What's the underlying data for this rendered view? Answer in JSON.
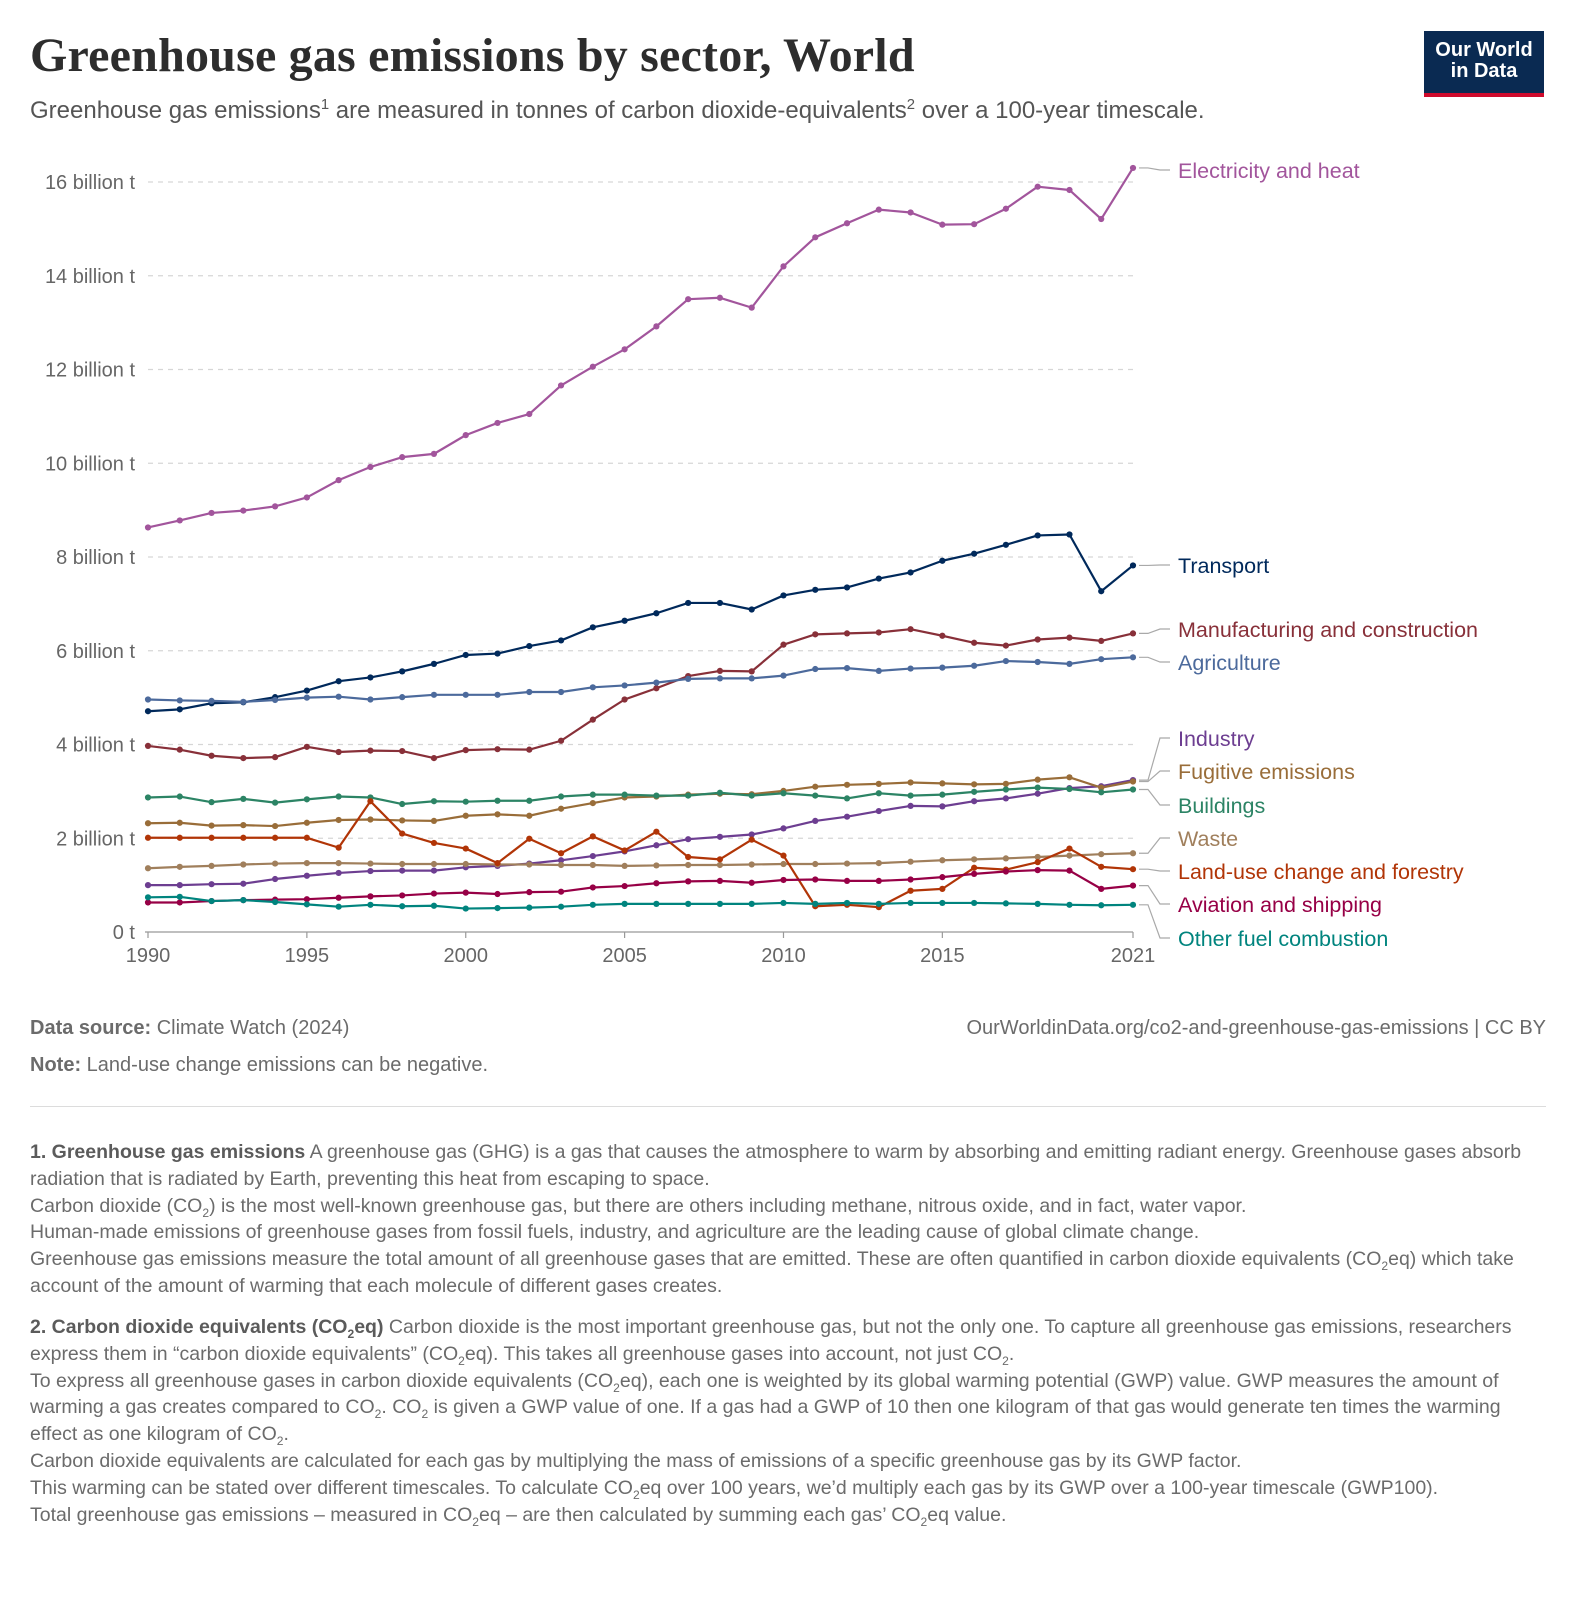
{
  "header": {
    "title": "Greenhouse gas emissions by sector, World",
    "subtitle_a": "Greenhouse gas emissions",
    "sup1": "1",
    "subtitle_b": " are measured in tonnes of carbon dioxide-equivalents",
    "sup2": "2",
    "subtitle_c": " over a 100-year timescale.",
    "logo_line1": "Our World",
    "logo_line2": "in Data"
  },
  "footer": {
    "source_label": "Data source:",
    "source_value": " Climate Watch (2024)",
    "url": "OurWorldinData.org/co2-and-greenhouse-gas-emissions | CC BY",
    "note_label": "Note:",
    "note_value": " Land-use change emissions can be negative."
  },
  "footnotes": {
    "fn1_title": "1. Greenhouse gas emissions",
    "fn1_p1": " A greenhouse gas (GHG) is a gas that causes the atmosphere to warm by absorbing and emitting radiant energy. Greenhouse gases absorb radiation that is radiated by Earth, preventing this heat from escaping to space.",
    "fn1_p2a": "Carbon dioxide (CO",
    "fn1_p2b": ") is the most well-known greenhouse gas, but there are others including methane, nitrous oxide, and in fact, water vapor.",
    "fn1_p3": "Human-made emissions of greenhouse gases from fossil fuels, industry, and agriculture are the leading cause of global climate change.",
    "fn1_p4a": "Greenhouse gas emissions measure the total amount of all greenhouse gases that are emitted. These are often quantified in carbon dioxide equivalents (CO",
    "fn1_p4b": "eq) which take account of the amount of warming that each molecule of different gases creates.",
    "sub2": "2",
    "fn2_title_a": "2. Carbon dioxide equivalents (CO",
    "fn2_title_b": "eq)",
    "fn2_p1a": " Carbon dioxide is the most important greenhouse gas, but not the only one. To capture all greenhouse gas emissions, researchers express them in “carbon dioxide equivalents” (CO",
    "fn2_p1b": "eq). This takes all greenhouse gases into account, not just CO",
    "fn2_p1c": ".",
    "fn2_p2a": "To express all greenhouse gases in carbon dioxide equivalents (CO",
    "fn2_p2b": "eq), each one is weighted by its global warming potential (GWP) value. GWP measures the amount of warming a gas creates compared to CO",
    "fn2_p2c": ". CO",
    "fn2_p2d": " is given a GWP value of one. If a gas had a GWP of 10 then one kilogram of that gas would generate ten times the warming effect as one kilogram of CO",
    "fn2_p2e": ".",
    "fn2_p3": "Carbon dioxide equivalents are calculated for each gas by multiplying the mass of emissions of a specific greenhouse gas by its GWP factor.",
    "fn2_p4a": "This warming can be stated over different timescales. To calculate CO",
    "fn2_p4b": "eq over 100 years, we’d multiply each gas by its GWP over a 100-year timescale (GWP100).",
    "fn2_p5a": "Total greenhouse gas emissions – measured in CO",
    "fn2_p5b": "eq – are then calculated by summing each gas’ CO",
    "fn2_p5c": "eq value."
  },
  "chart_data": {
    "type": "line",
    "title": "Greenhouse gas emissions by sector, World",
    "unit": "tonnes CO2eq",
    "ylim": [
      0,
      16000000000
    ],
    "yticks": [
      0,
      2000000000,
      4000000000,
      6000000000,
      8000000000,
      10000000000,
      12000000000,
      14000000000,
      16000000000
    ],
    "ytick_labels": [
      "0 t",
      "2 billion t",
      "4 billion t",
      "6 billion t",
      "8 billion t",
      "10 billion t",
      "12 billion t",
      "14 billion t",
      "16 billion t"
    ],
    "xlim": [
      1990,
      2021
    ],
    "xticks": [
      1990,
      1995,
      2000,
      2005,
      2010,
      2015,
      2021
    ],
    "xtick_labels": [
      "1990",
      "1995",
      "2000",
      "2005",
      "2010",
      "2015",
      "2021"
    ],
    "x": [
      1990,
      1991,
      1992,
      1993,
      1994,
      1995,
      1996,
      1997,
      1998,
      1999,
      2000,
      2001,
      2002,
      2003,
      2004,
      2005,
      2006,
      2007,
      2008,
      2009,
      2010,
      2011,
      2012,
      2013,
      2014,
      2015,
      2016,
      2017,
      2018,
      2019,
      2020,
      2021
    ],
    "series": [
      {
        "name": "Electricity and heat",
        "color": "#a2559c",
        "values": [
          8.63,
          8.78,
          8.94,
          8.99,
          9.08,
          9.27,
          9.64,
          9.92,
          10.13,
          10.2,
          10.6,
          10.86,
          11.05,
          11.66,
          12.06,
          12.43,
          12.92,
          13.5,
          13.53,
          13.32,
          14.2,
          14.82,
          15.12,
          15.41,
          15.35,
          15.09,
          15.1,
          15.43,
          15.9,
          15.83,
          15.21,
          16.3
        ]
      },
      {
        "name": "Transport",
        "color": "#00295b",
        "values": [
          4.71,
          4.75,
          4.88,
          4.9,
          5.01,
          5.15,
          5.35,
          5.43,
          5.56,
          5.72,
          5.91,
          5.94,
          6.1,
          6.22,
          6.5,
          6.64,
          6.8,
          7.02,
          7.02,
          6.88,
          7.18,
          7.3,
          7.35,
          7.54,
          7.67,
          7.92,
          8.07,
          8.26,
          8.46,
          8.48,
          7.27,
          7.82
        ]
      },
      {
        "name": "Manufacturing and construction",
        "color": "#883039",
        "values": [
          3.97,
          3.89,
          3.76,
          3.71,
          3.73,
          3.95,
          3.84,
          3.87,
          3.86,
          3.71,
          3.88,
          3.9,
          3.89,
          4.08,
          4.53,
          4.96,
          5.2,
          5.46,
          5.57,
          5.56,
          6.13,
          6.35,
          6.37,
          6.39,
          6.46,
          6.32,
          6.17,
          6.11,
          6.24,
          6.28,
          6.21,
          6.37
        ]
      },
      {
        "name": "Agriculture",
        "color": "#4c6a9c",
        "values": [
          4.96,
          4.94,
          4.93,
          4.91,
          4.95,
          5.0,
          5.02,
          4.96,
          5.01,
          5.06,
          5.06,
          5.06,
          5.12,
          5.12,
          5.22,
          5.26,
          5.32,
          5.4,
          5.41,
          5.41,
          5.47,
          5.61,
          5.63,
          5.57,
          5.62,
          5.64,
          5.68,
          5.78,
          5.76,
          5.72,
          5.82,
          5.86
        ]
      },
      {
        "name": "Industry",
        "color": "#6d3e91",
        "values": [
          1.0,
          1.0,
          1.02,
          1.03,
          1.13,
          1.2,
          1.26,
          1.3,
          1.31,
          1.31,
          1.38,
          1.41,
          1.46,
          1.53,
          1.62,
          1.72,
          1.85,
          1.98,
          2.03,
          2.08,
          2.21,
          2.37,
          2.46,
          2.58,
          2.69,
          2.68,
          2.79,
          2.85,
          2.95,
          3.07,
          3.11,
          3.24
        ]
      },
      {
        "name": "Fugitive emissions",
        "color": "#996d39",
        "values": [
          2.32,
          2.33,
          2.27,
          2.28,
          2.26,
          2.33,
          2.39,
          2.4,
          2.38,
          2.37,
          2.48,
          2.51,
          2.48,
          2.63,
          2.75,
          2.87,
          2.89,
          2.93,
          2.95,
          2.94,
          3.01,
          3.1,
          3.14,
          3.16,
          3.19,
          3.17,
          3.15,
          3.16,
          3.25,
          3.3,
          3.08,
          3.21
        ]
      },
      {
        "name": "Buildings",
        "color": "#2c8465",
        "values": [
          2.87,
          2.89,
          2.77,
          2.84,
          2.76,
          2.83,
          2.89,
          2.87,
          2.73,
          2.79,
          2.78,
          2.8,
          2.8,
          2.89,
          2.93,
          2.93,
          2.91,
          2.91,
          2.97,
          2.91,
          2.96,
          2.91,
          2.85,
          2.96,
          2.91,
          2.93,
          2.99,
          3.04,
          3.08,
          3.05,
          2.98,
          3.04
        ]
      },
      {
        "name": "Waste",
        "color": "#a07f5c",
        "values": [
          1.36,
          1.39,
          1.41,
          1.44,
          1.46,
          1.47,
          1.47,
          1.46,
          1.45,
          1.45,
          1.45,
          1.44,
          1.44,
          1.43,
          1.43,
          1.41,
          1.42,
          1.43,
          1.43,
          1.44,
          1.45,
          1.45,
          1.46,
          1.47,
          1.5,
          1.53,
          1.55,
          1.57,
          1.6,
          1.63,
          1.66,
          1.68
        ]
      },
      {
        "name": "Land-use change and forestry",
        "color": "#b13507",
        "values": [
          2.01,
          2.01,
          2.01,
          2.01,
          2.01,
          2.01,
          1.8,
          2.79,
          2.1,
          1.9,
          1.78,
          1.47,
          1.99,
          1.68,
          2.04,
          1.74,
          2.14,
          1.6,
          1.55,
          1.97,
          1.63,
          0.55,
          0.58,
          0.53,
          0.88,
          0.92,
          1.37,
          1.33,
          1.49,
          1.78,
          1.39,
          1.34
        ]
      },
      {
        "name": "Aviation and shipping",
        "color": "#970046",
        "values": [
          0.63,
          0.63,
          0.66,
          0.68,
          0.69,
          0.7,
          0.73,
          0.76,
          0.78,
          0.82,
          0.84,
          0.81,
          0.85,
          0.86,
          0.95,
          0.98,
          1.04,
          1.08,
          1.09,
          1.05,
          1.11,
          1.12,
          1.09,
          1.09,
          1.12,
          1.17,
          1.24,
          1.29,
          1.32,
          1.31,
          0.92,
          0.99
        ]
      },
      {
        "name": "Other fuel combustion",
        "color": "#00847e",
        "values": [
          0.74,
          0.75,
          0.66,
          0.68,
          0.64,
          0.59,
          0.54,
          0.58,
          0.55,
          0.56,
          0.5,
          0.51,
          0.52,
          0.54,
          0.58,
          0.6,
          0.6,
          0.6,
          0.6,
          0.6,
          0.62,
          0.6,
          0.62,
          0.6,
          0.62,
          0.62,
          0.62,
          0.61,
          0.6,
          0.58,
          0.57,
          0.58
        ]
      }
    ]
  }
}
